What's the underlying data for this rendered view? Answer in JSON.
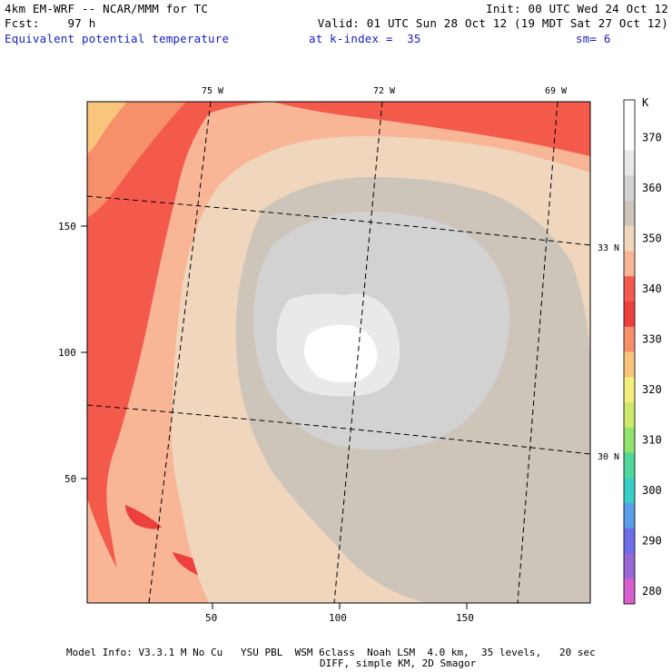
{
  "header": {
    "model_line": "4km EM-WRF -- NCAR/MMM for TC",
    "init_line": "Init: 00 UTC Wed 24 Oct 12",
    "fcst_line": "Fcst:    97 h",
    "valid_line": "Valid: 01 UTC Sun 28 Oct 12 (19 MDT Sat 27 Oct 12)",
    "field_name": "Equivalent potential temperature",
    "level_text": "at k-index =  35",
    "smooth_text": "sm= 6"
  },
  "map": {
    "longitude_labels": [
      "75 W",
      "72 W",
      "69 W"
    ],
    "latitude_labels": [
      "33 N",
      "30 N"
    ],
    "x_ticks": [
      "50",
      "100",
      "150"
    ],
    "y_ticks": [
      "150",
      "100",
      "50"
    ]
  },
  "colorbar": {
    "unit": "K",
    "levels": [
      {
        "label": "",
        "color": "#ffffff"
      },
      {
        "label": "370",
        "color": "#ffffff"
      },
      {
        "label": "",
        "color": "#e9e9e9"
      },
      {
        "label": "360",
        "color": "#d2d2d2"
      },
      {
        "label": "",
        "color": "#cdc4ba"
      },
      {
        "label": "350",
        "color": "#f0d6bd"
      },
      {
        "label": "",
        "color": "#f8b697"
      },
      {
        "label": "340",
        "color": "#f45a4c"
      },
      {
        "label": "",
        "color": "#ee3f3f"
      },
      {
        "label": "330",
        "color": "#f6906a"
      },
      {
        "label": "",
        "color": "#f9c47c"
      },
      {
        "label": "320",
        "color": "#f3ef7a"
      },
      {
        "label": "",
        "color": "#cde86c"
      },
      {
        "label": "310",
        "color": "#92e36d"
      },
      {
        "label": "",
        "color": "#4fd89b"
      },
      {
        "label": "300",
        "color": "#36cfc6"
      },
      {
        "label": "",
        "color": "#5a9de9"
      },
      {
        "label": "290",
        "color": "#6d6ee8"
      },
      {
        "label": "",
        "color": "#9a68d6"
      },
      {
        "label": "280",
        "color": "#d85fcf"
      }
    ]
  },
  "footer": {
    "line1": "Model Info: V3.3.1 M No Cu   YSU PBL  WSM 6class  Noah LSM  4.0 km,  35 levels,   20 sec",
    "line2": "DIFF, simple KM, 2D Smagor"
  },
  "colors": {
    "outer_red": "#f45a4c",
    "salmon": "#f8b697",
    "tan": "#f0d6bd",
    "taupe": "#cdc4ba",
    "light_gray": "#d2d2d2",
    "near_white": "#e9e9e9",
    "white": "#ffffff"
  }
}
